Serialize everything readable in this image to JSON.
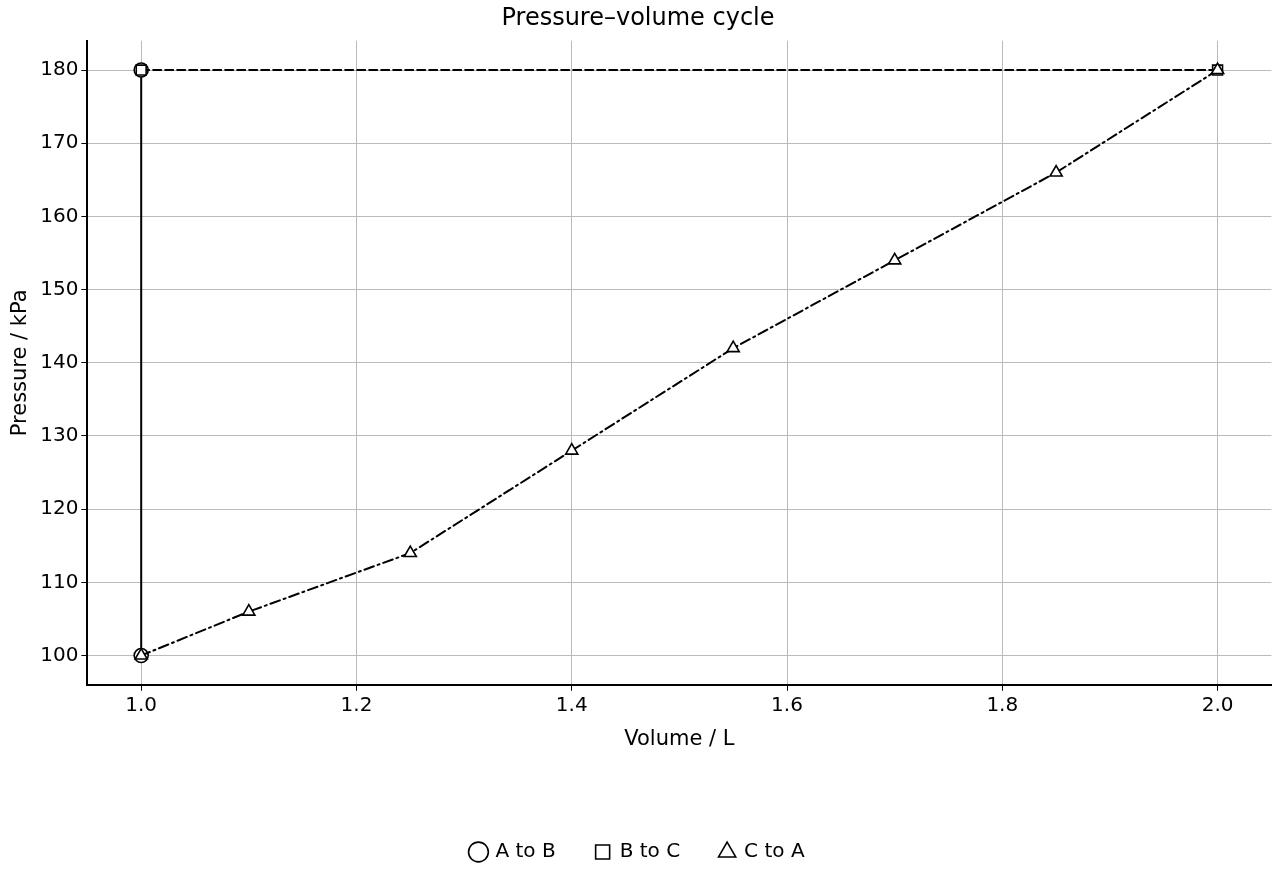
{
  "chart_data": {
    "type": "line",
    "title": "Pressure–volume cycle",
    "xlabel": "Volume / L",
    "ylabel": "Pressure / kPa",
    "xlim": [
      0.95,
      2.05
    ],
    "ylim": [
      96,
      184
    ],
    "xticks": [
      {
        "value": 1,
        "label": "1.0"
      },
      {
        "value": 1.2,
        "label": "1.2"
      },
      {
        "value": 1.4,
        "label": "1.4"
      },
      {
        "value": 1.6,
        "label": "1.6"
      },
      {
        "value": 1.8,
        "label": "1.8"
      },
      {
        "value": 2,
        "label": "2.0"
      }
    ],
    "yticks": [
      100,
      110,
      120,
      130,
      140,
      150,
      160,
      170,
      180
    ],
    "grid": true,
    "legend": "bottom",
    "series": [
      {
        "name": "A to B",
        "color": "#000000",
        "marker": "circle",
        "line_style": "solid",
        "x": [
          1,
          1
        ],
        "values": [
          100,
          180
        ]
      },
      {
        "name": "B to C",
        "color": "#000000",
        "marker": "square",
        "line_style": "dashed",
        "x": [
          1,
          2
        ],
        "values": [
          180,
          180
        ]
      },
      {
        "name": "C to A",
        "color": "#000000",
        "marker": "triangle",
        "line_style": "dashdot",
        "x": [
          2,
          1.85,
          1.7,
          1.55,
          1.4,
          1.25,
          1.1,
          1
        ],
        "values": [
          180,
          166,
          154,
          142,
          128,
          114,
          106,
          100
        ]
      }
    ]
  }
}
